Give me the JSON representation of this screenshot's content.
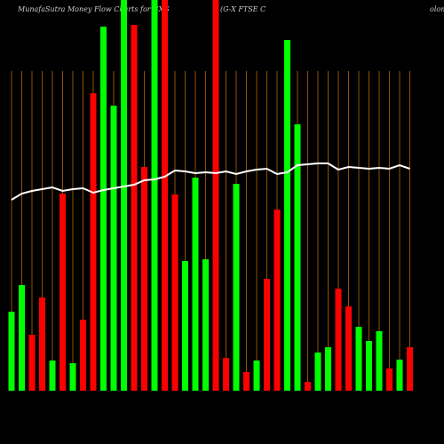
{
  "chart_data": {
    "type": "bar",
    "title": "MunafaSutra  Money Flow  Charts for GXG",
    "subtitle": "(G-X   FTSE C",
    "subtitle_tail": "olom",
    "ylim": [
      0,
      440
    ],
    "values": [
      89,
      119,
      63,
      105,
      34,
      222,
      31,
      80,
      335,
      410,
      321,
      440,
      412,
      252,
      440,
      440,
      221,
      146,
      240,
      148,
      440,
      37,
      233,
      21,
      34,
      126,
      204,
      395,
      300,
      10,
      43,
      49,
      115,
      95,
      72,
      56,
      67,
      25,
      35,
      49
    ],
    "colors": [
      "#00ff00",
      "#00ff00",
      "#ff0000",
      "#ff0000",
      "#00ff00",
      "#ff0000",
      "#00ff00",
      "#ff0000",
      "#ff0000",
      "#00ff00",
      "#00ff00",
      "#00ff00",
      "#ff0000",
      "#ff0000",
      "#00ff00",
      "#ff0000",
      "#ff0000",
      "#00ff00",
      "#00ff00",
      "#00ff00",
      "#ff0000",
      "#ff0000",
      "#00ff00",
      "#ff0000",
      "#00ff00",
      "#ff0000",
      "#ff0000",
      "#00ff00",
      "#00ff00",
      "#ff0000",
      "#00ff00",
      "#00ff00",
      "#ff0000",
      "#ff0000",
      "#00ff00",
      "#00ff00",
      "#00ff00",
      "#ff0000",
      "#00ff00",
      "#ff0000"
    ],
    "line": {
      "color": "#ffffff",
      "values": [
        215,
        222,
        225,
        227,
        229,
        225,
        227,
        228,
        223,
        226,
        228,
        230,
        232,
        237,
        238,
        241,
        248,
        247,
        245,
        246,
        245,
        247,
        244,
        247,
        249,
        250,
        244,
        246,
        254,
        255,
        256,
        256,
        249,
        252,
        251,
        250,
        251,
        250,
        254,
        250
      ]
    },
    "grid_color": "#b8650a"
  }
}
